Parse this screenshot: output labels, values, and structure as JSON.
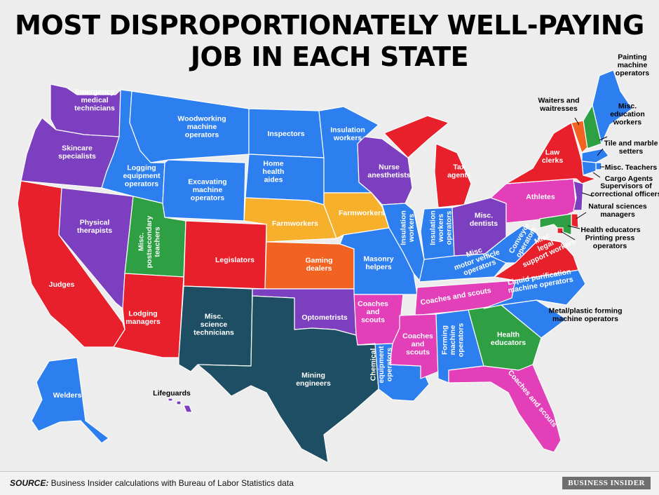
{
  "title": {
    "line1": "MOST DISPROPORTIONATELY WELL-PAYING",
    "line2": "JOB IN EACH STATE"
  },
  "colors": {
    "blue": "#2d7ff0",
    "purple": "#7b3fbf",
    "red": "#e8202b",
    "green": "#2ea043",
    "teal": "#1d4e63",
    "orange": "#f26322",
    "yellow": "#f6b02c",
    "pink": "#e23fb8"
  },
  "states": {
    "WA": "Emergency medical technicians",
    "OR": "Skincare specialists",
    "CA": "Judges",
    "NV": "Physical therapists",
    "ID": "Logging equipment operators",
    "MT": "Woodworking machine operators",
    "WY": "Excavating machine operators",
    "UT": "Misc. postsecondary teachers",
    "AZ": "Lodging managers",
    "CO": "Legislators",
    "NM": "Misc. science technicians",
    "ND": "Inspectors",
    "SD": "Home health aides",
    "NE": "Farmworkers",
    "KS": "Gaming dealers",
    "OK": "Optometrists",
    "TX": "Mining engineers",
    "MN": "Insulation workers",
    "IA": "Farmworkers",
    "MO": "Masonry helpers",
    "AR": "Coaches and scouts",
    "LA": "Chemical equipment operators",
    "WI": "Nurse anesthetists",
    "IL": "Insulation workers",
    "MI": "Tax agents",
    "IN": "Insulation workers",
    "OH": "Misc. dentists",
    "KY": "Misc motor vehicle operators",
    "TN": "Coaches and scouts",
    "MS": "Coaches and scouts",
    "AL": "Forming machine operators",
    "GA": "Health educators",
    "FL": "Coaches and scouts",
    "SC": "Metal/plastic forming machine operators",
    "NC": "Liquid purification machine operators",
    "VA": "Misc legal support workers",
    "WV": "Conveyor operators",
    "PA": "Athletes",
    "NY": "Law clerks",
    "VT": "Waiters and waitresses",
    "NH": "Misc. education workers",
    "ME": "Painting machine operators",
    "MA": "Tile and marble setters",
    "RI": "Misc. Teachers",
    "CT": "Cargo Agents",
    "NJ": "Supervisors of correctional officers",
    "DE": "Natural sciences managers",
    "MD": "Health educators",
    "DC": "Printing press operators",
    "AK": "Welders",
    "HI": "Lifeguards"
  },
  "footer": {
    "source_label": "SOURCE:",
    "source_text": " Business Insider calculations with Bureau of Labor Statistics data",
    "brand": "BUSINESS INSIDER"
  }
}
